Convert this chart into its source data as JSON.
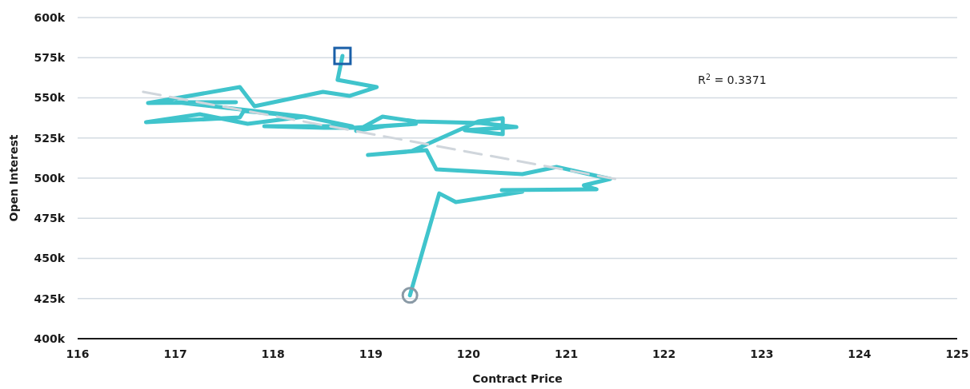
{
  "chart_data": {
    "type": "line",
    "xlabel": "Contract Price",
    "ylabel": "Open Interest",
    "xlim": [
      116,
      125
    ],
    "xticks": [
      116,
      117,
      118,
      119,
      120,
      121,
      122,
      123,
      124,
      125
    ],
    "ylim": [
      400000,
      600000
    ],
    "yticks": [
      {
        "value": 400000,
        "label": "400k"
      },
      {
        "value": 425000,
        "label": "425k"
      },
      {
        "value": 450000,
        "label": "450k"
      },
      {
        "value": 475000,
        "label": "475k"
      },
      {
        "value": 500000,
        "label": "500k"
      },
      {
        "value": 525000,
        "label": "525k"
      },
      {
        "value": 550000,
        "label": "550k"
      },
      {
        "value": 575000,
        "label": "575k"
      },
      {
        "value": 600000,
        "label": "600k"
      }
    ],
    "grid": "y",
    "annotations": [
      "R$^{2}$ = 0.3371"
    ],
    "series": [
      {
        "color": "#40c4cc",
        "line_style": "solid",
        "x": [
          119.4,
          119.7,
          119.87,
          120.55,
          120.34,
          121.31,
          121.18,
          121.45,
          120.9,
          120.55,
          119.67,
          119.57,
          118.97,
          119.42,
          120.1,
          120.35,
          120.35,
          119.96,
          120.49,
          120.12,
          119.46,
          119.12,
          118.85,
          119.14,
          119.46,
          118.81,
          118.52,
          117.91,
          118.81,
          118.32,
          117.74,
          117.25,
          116.7,
          117.66,
          117.7,
          118.32,
          117.01,
          117.62,
          116.72,
          117.66,
          117.81,
          118.51,
          118.78,
          119.06,
          118.66,
          118.71
        ],
        "values": [
          427000,
          490500,
          485100,
          491500,
          492500,
          493000,
          495500,
          499500,
          507000,
          502500,
          505500,
          517400,
          514400,
          516900,
          535300,
          537300,
          527400,
          529900,
          531800,
          534300,
          535300,
          538300,
          529400,
          532300,
          533800,
          531300,
          531300,
          532300,
          532300,
          538300,
          533800,
          539800,
          534800,
          537800,
          541800,
          538300,
          547300,
          547300,
          546800,
          556700,
          544800,
          553700,
          551200,
          556700,
          561200,
          576100
        ]
      },
      {
        "color": "#d0d6dc",
        "line_style": "dashed",
        "x": [
          116.67,
          121.5
        ],
        "values": [
          553700,
          499500
        ]
      },
      {
        "type": "scatter",
        "color": "#8a9aa6",
        "marker": "circle",
        "x": [
          119.4
        ],
        "values": [
          427000
        ]
      },
      {
        "type": "scatter",
        "color": "#1a5fa8",
        "marker": "square",
        "x": [
          118.71
        ],
        "values": [
          576100
        ]
      }
    ]
  }
}
